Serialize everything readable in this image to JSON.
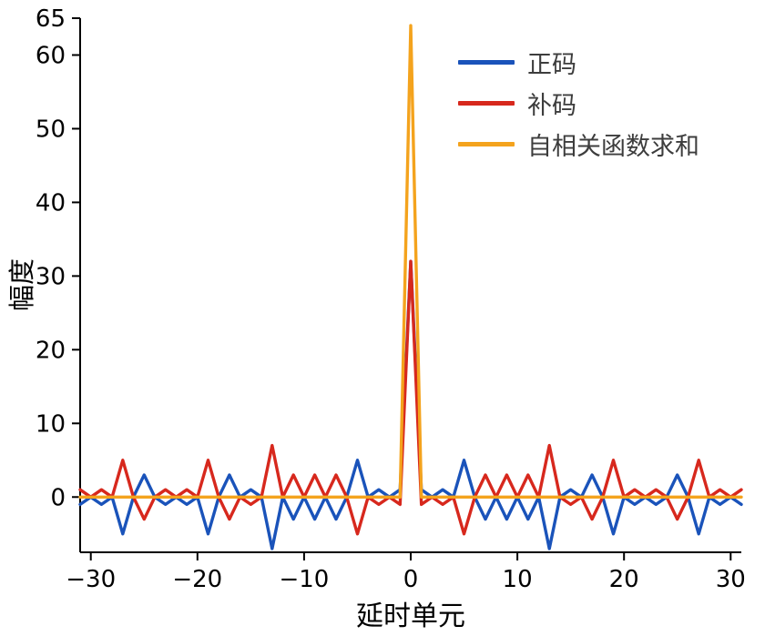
{
  "chart_data": {
    "type": "line",
    "title": "",
    "xlabel": "延时单元",
    "ylabel": "幅度",
    "xlim": [
      -31,
      31
    ],
    "ylim": [
      -7.5,
      65
    ],
    "xticks": [
      -30,
      -20,
      -10,
      0,
      10,
      20,
      30
    ],
    "yticks": [
      0,
      10,
      20,
      30,
      40,
      50,
      60,
      65
    ],
    "grid": false,
    "legend_position": "upper-center-right",
    "x": [
      -31,
      -30,
      -29,
      -28,
      -27,
      -26,
      -25,
      -24,
      -23,
      -22,
      -21,
      -20,
      -19,
      -18,
      -17,
      -16,
      -15,
      -14,
      -13,
      -12,
      -11,
      -10,
      -9,
      -8,
      -7,
      -6,
      -5,
      -4,
      -3,
      -2,
      -1,
      0,
      1,
      2,
      3,
      4,
      5,
      6,
      7,
      8,
      9,
      10,
      11,
      12,
      13,
      14,
      15,
      16,
      17,
      18,
      19,
      20,
      21,
      22,
      23,
      24,
      25,
      26,
      27,
      28,
      29,
      30,
      31
    ],
    "series": [
      {
        "name": "正码",
        "color": "#1a53ba",
        "values": [
          -1,
          0,
          -1,
          0,
          -5,
          0,
          3,
          0,
          -1,
          0,
          -1,
          0,
          -5,
          0,
          3,
          0,
          1,
          0,
          -7,
          0,
          -3,
          0,
          -3,
          0,
          -3,
          0,
          5,
          0,
          1,
          0,
          1,
          32,
          1,
          0,
          1,
          0,
          5,
          0,
          -3,
          0,
          -3,
          0,
          -3,
          0,
          -7,
          0,
          1,
          0,
          3,
          0,
          -5,
          0,
          -1,
          0,
          -1,
          0,
          3,
          0,
          -5,
          0,
          -1,
          0,
          -1
        ]
      },
      {
        "name": "补码",
        "color": "#d7281d",
        "values": [
          1,
          0,
          1,
          0,
          5,
          0,
          -3,
          0,
          1,
          0,
          1,
          0,
          5,
          0,
          -3,
          0,
          -1,
          0,
          7,
          0,
          3,
          0,
          3,
          0,
          3,
          0,
          -5,
          0,
          -1,
          0,
          -1,
          32,
          -1,
          0,
          -1,
          0,
          -5,
          0,
          3,
          0,
          3,
          0,
          3,
          0,
          7,
          0,
          -1,
          0,
          -3,
          0,
          5,
          0,
          1,
          0,
          1,
          0,
          -3,
          0,
          5,
          0,
          1,
          0,
          1
        ]
      },
      {
        "name": "自相关函数求和",
        "color": "#f4a31d",
        "values": [
          0,
          0,
          0,
          0,
          0,
          0,
          0,
          0,
          0,
          0,
          0,
          0,
          0,
          0,
          0,
          0,
          0,
          0,
          0,
          0,
          0,
          0,
          0,
          0,
          0,
          0,
          0,
          0,
          0,
          0,
          0,
          64,
          0,
          0,
          0,
          0,
          0,
          0,
          0,
          0,
          0,
          0,
          0,
          0,
          0,
          0,
          0,
          0,
          0,
          0,
          0,
          0,
          0,
          0,
          0,
          0,
          0,
          0,
          0,
          0,
          0,
          0,
          0
        ]
      }
    ]
  }
}
